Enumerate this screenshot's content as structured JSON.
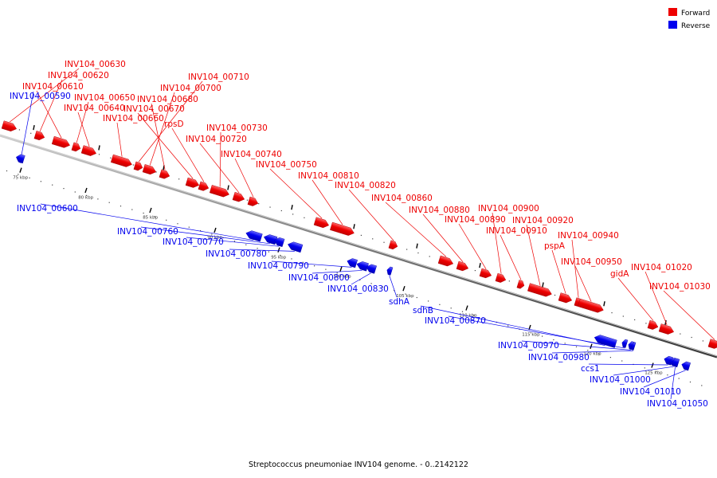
{
  "legend": {
    "forward_label": "Forward",
    "reverse_label": "Reverse"
  },
  "colors": {
    "forward": "#ee0000",
    "reverse": "#0000ee",
    "backbone": "#7a7a7a"
  },
  "caption": "Streptococcus pneumoniae INV104 genome. - 0..2142122",
  "ticks": {
    "labels": [
      "75 kbp",
      "80 kbp",
      "85 kbp",
      "90 kbp",
      "95 kbp",
      "100 kbp",
      "105 kbp",
      "110 kbp",
      "115 kbp",
      "120 kbp",
      "125 kbp"
    ]
  },
  "genes": {
    "forward": [
      {
        "name": "INV104_00630"
      },
      {
        "name": "INV104_00620"
      },
      {
        "name": "INV104_00610"
      },
      {
        "name": "INV104_00650"
      },
      {
        "name": "INV104_00640"
      },
      {
        "name": "INV104_00660"
      },
      {
        "name": "INV104_00710"
      },
      {
        "name": "INV104_00700"
      },
      {
        "name": "INV104_00680"
      },
      {
        "name": "INV104_00670"
      },
      {
        "name": "rpsD"
      },
      {
        "name": "INV104_00730"
      },
      {
        "name": "INV104_00720"
      },
      {
        "name": "INV104_00740"
      },
      {
        "name": "INV104_00750"
      },
      {
        "name": "INV104_00810"
      },
      {
        "name": "INV104_00820"
      },
      {
        "name": "INV104_00860"
      },
      {
        "name": "INV104_00880"
      },
      {
        "name": "INV104_00890"
      },
      {
        "name": "INV104_00900"
      },
      {
        "name": "INV104_00910"
      },
      {
        "name": "INV104_00920"
      },
      {
        "name": "pspA"
      },
      {
        "name": "INV104_00940"
      },
      {
        "name": "INV104_00950"
      },
      {
        "name": "gidA"
      },
      {
        "name": "INV104_01020"
      },
      {
        "name": "INV104_01030"
      }
    ],
    "reverse": [
      {
        "name": "INV104_00590"
      },
      {
        "name": "INV104_00600"
      },
      {
        "name": "INV104_00760"
      },
      {
        "name": "INV104_00770"
      },
      {
        "name": "INV104_00780"
      },
      {
        "name": "INV104_00790"
      },
      {
        "name": "INV104_00800"
      },
      {
        "name": "INV104_00830"
      },
      {
        "name": "sdhA"
      },
      {
        "name": "sdhB"
      },
      {
        "name": "INV104_00870"
      },
      {
        "name": "INV104_00970"
      },
      {
        "name": "INV104_00980"
      },
      {
        "name": "ccs1"
      },
      {
        "name": "INV104_01000"
      },
      {
        "name": "INV104_01010"
      },
      {
        "name": "INV104_01050"
      }
    ]
  }
}
